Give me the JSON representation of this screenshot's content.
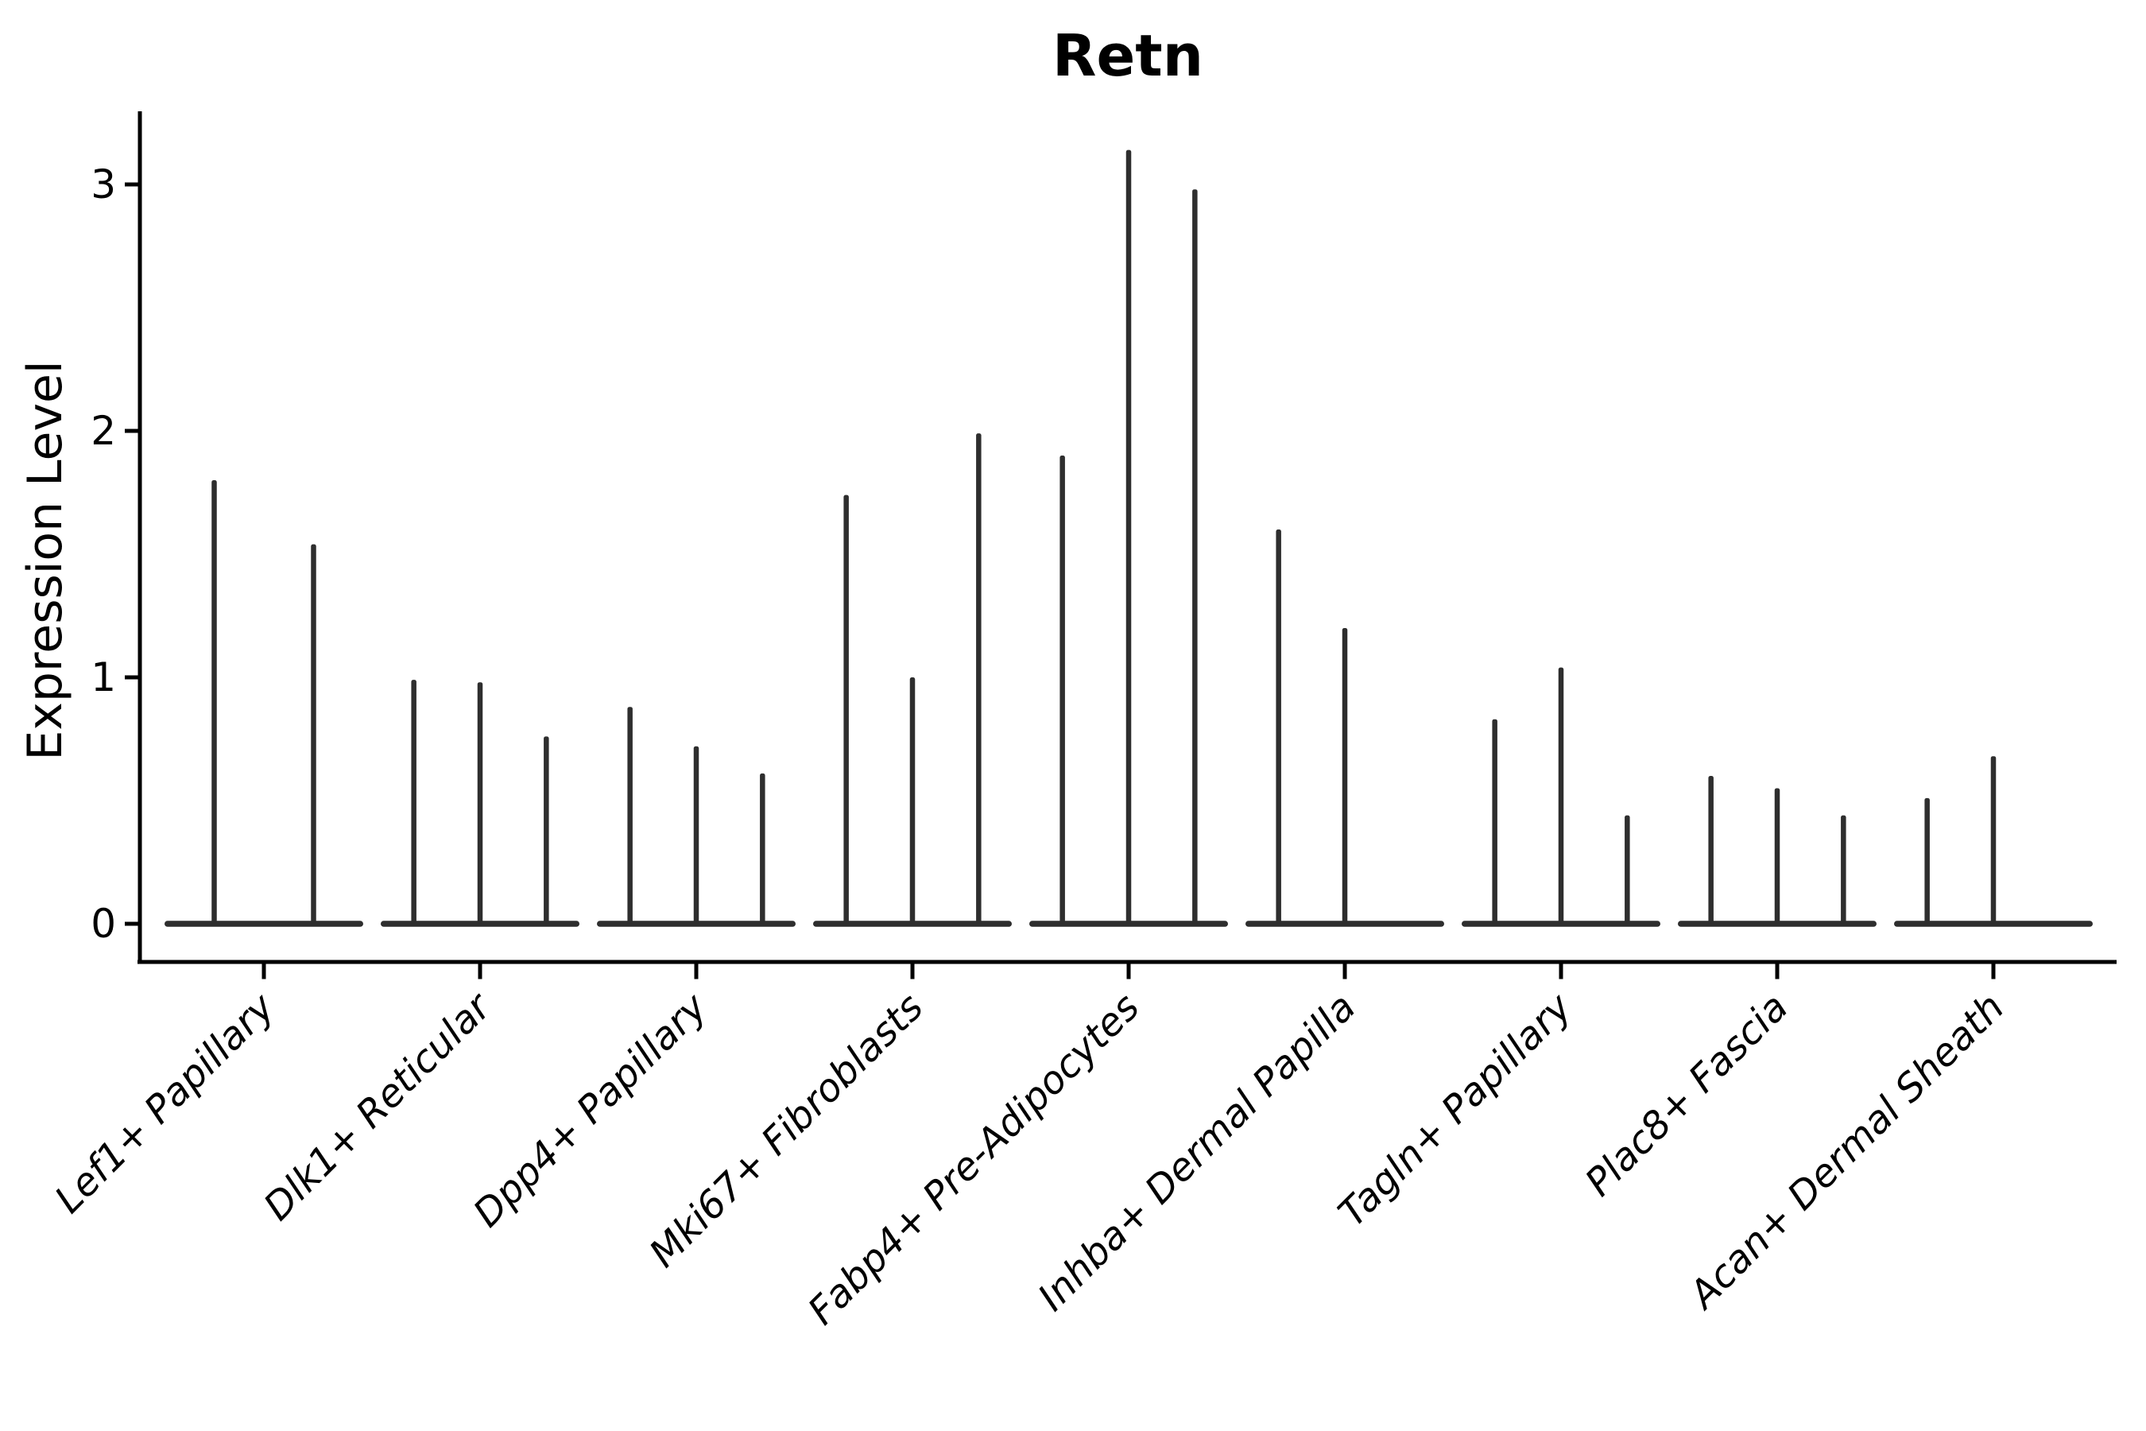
{
  "chart_data": {
    "type": "violin",
    "title": "Retn",
    "ylabel": "Expression Level",
    "xlabel": "",
    "yticks": [
      0,
      1,
      2,
      3
    ],
    "ylim": [
      -0.16,
      3.3
    ],
    "grid": false,
    "legend": "none",
    "style": {
      "background_color": "#ffffff",
      "axis_color": "#000000",
      "violin_color": "#2e2e2e",
      "x_label_rotation_deg": 45,
      "x_labels_italic": true
    },
    "note": "Single-cell gene expression violin plot for gene Retn. Each cluster contains 2-3 ultra-thin violins collapsed at 0 expression with a single thin spike; spike_heights lists the maximum expression reached by each violin (0 = completely flat violin, no spike).",
    "categories": [
      {
        "label": "Lef1+ Papillary",
        "spike_heights": [
          1.8,
          1.54
        ]
      },
      {
        "label": "Dlk1+ Reticular",
        "spike_heights": [
          0.99,
          0.98,
          0.76
        ]
      },
      {
        "label": "Dpp4+ Papillary",
        "spike_heights": [
          0.88,
          0.72,
          0.61
        ]
      },
      {
        "label": "Mki67+ Fibroblasts",
        "spike_heights": [
          1.74,
          1.0,
          1.99
        ]
      },
      {
        "label": "Fabp4+ Pre-Adipocytes",
        "spike_heights": [
          1.9,
          3.14,
          2.98
        ]
      },
      {
        "label": "Inhba+ Dermal Papilla",
        "spike_heights": [
          1.6,
          1.2,
          0
        ]
      },
      {
        "label": "Tagln+ Papillary",
        "spike_heights": [
          0.83,
          1.04,
          0.44
        ]
      },
      {
        "label": "Plac8+ Fascia",
        "spike_heights": [
          0.6,
          0.55,
          0.44
        ]
      },
      {
        "label": "Acan+ Dermal Sheath",
        "spike_heights": [
          0.51,
          0.68,
          0
        ]
      }
    ]
  }
}
